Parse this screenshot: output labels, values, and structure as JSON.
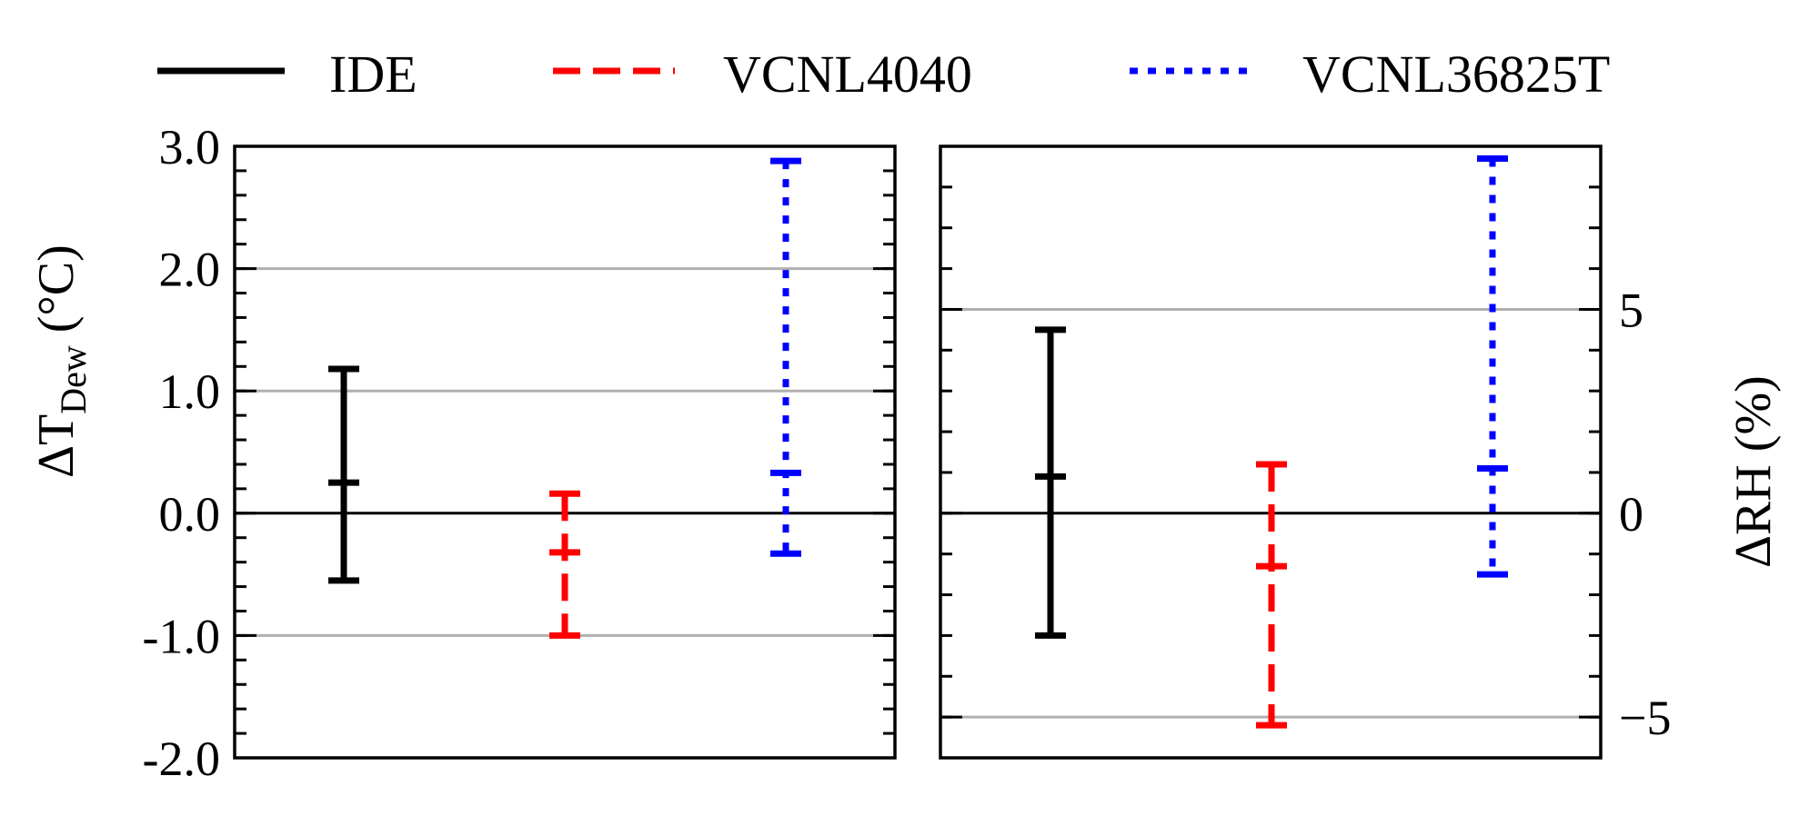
{
  "legend": [
    {
      "name": "IDE",
      "color": "#000000",
      "dash": "solid"
    },
    {
      "name": "VCNL4040",
      "color": "#ff0000",
      "dash": "dashed"
    },
    {
      "name": "VCNL36825T",
      "color": "#0000ff",
      "dash": "dotted"
    }
  ],
  "chart_data": [
    {
      "type": "errorbar",
      "panel": "left",
      "ylabel_main": "ΔT",
      "ylabel_sub": "Dew",
      "ylabel_unit": " (°C)",
      "ylim": [
        -2.0,
        3.0
      ],
      "ytick_values": [
        -2.0,
        -1.0,
        0.0,
        1.0,
        2.0,
        3.0
      ],
      "ytick_labels": [
        "-2.0",
        "-1.0",
        "0.0",
        "1.0",
        "2.0",
        "3.0"
      ],
      "minor_tick_step": 0.2,
      "gridlines": [
        -1.0,
        1.0,
        2.0
      ],
      "zero_line": 0,
      "y_axis_side": "left",
      "series": [
        {
          "name": "IDE",
          "mean": 0.25,
          "low": -0.55,
          "high": 1.18
        },
        {
          "name": "VCNL4040",
          "mean": -0.32,
          "low": -1.0,
          "high": 0.16
        },
        {
          "name": "VCNL36825T",
          "mean": 0.33,
          "low": -0.33,
          "high": 2.88
        }
      ]
    },
    {
      "type": "errorbar",
      "panel": "right",
      "ylabel_main": "ΔRH (%)",
      "ylim": [
        -6.0,
        9.0
      ],
      "ytick_values": [
        -5,
        0,
        5
      ],
      "ytick_labels": [
        "−5",
        "0",
        "5"
      ],
      "minor_tick_step": 1,
      "gridlines": [
        -5,
        5
      ],
      "zero_line": 0,
      "y_axis_side": "right",
      "series": [
        {
          "name": "IDE",
          "mean": 0.9,
          "low": -3.0,
          "high": 4.5
        },
        {
          "name": "VCNL4040",
          "mean": -1.3,
          "low": -5.2,
          "high": 1.2
        },
        {
          "name": "VCNL36825T",
          "mean": 1.1,
          "low": -1.5,
          "high": 8.7
        }
      ]
    }
  ]
}
